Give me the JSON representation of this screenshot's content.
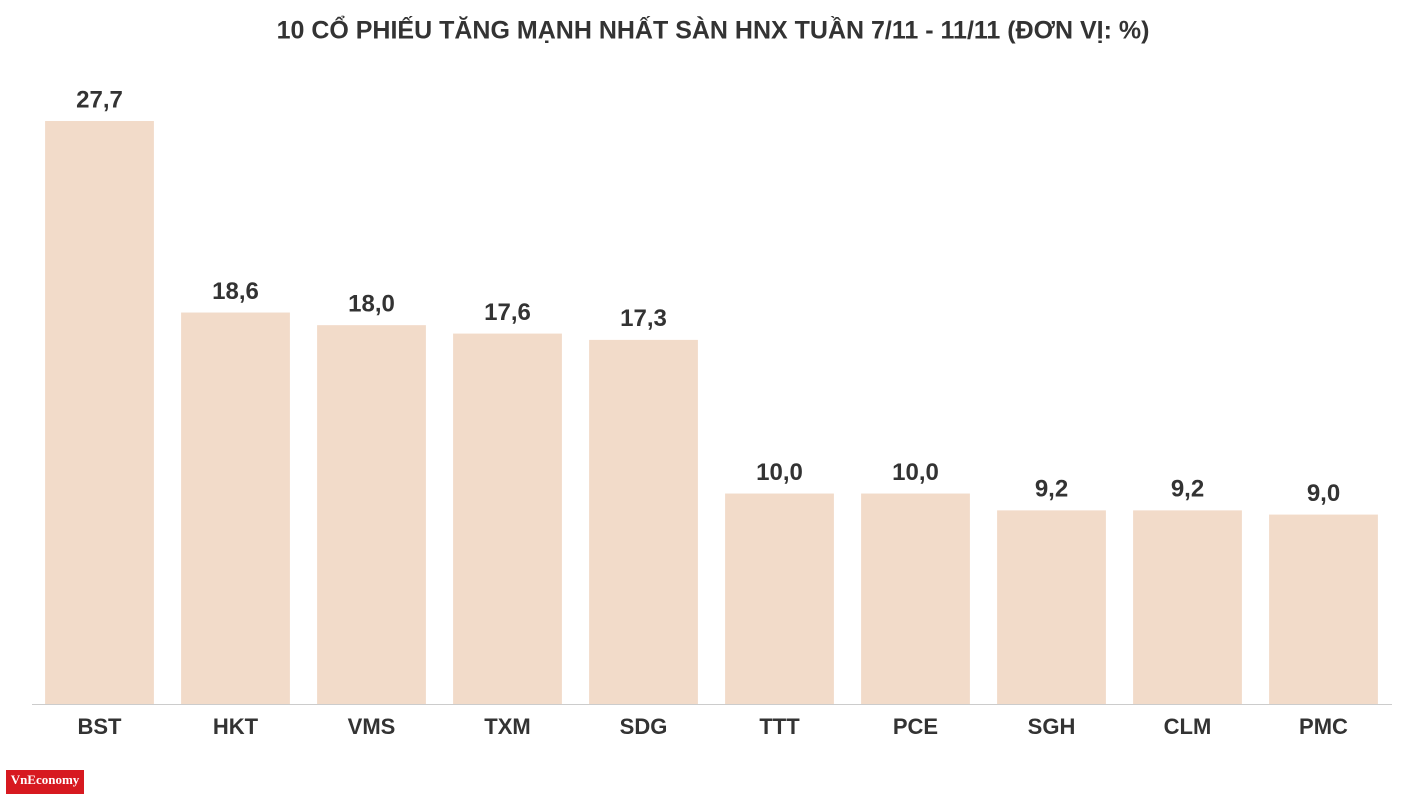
{
  "chart_data": {
    "type": "bar",
    "title": "10 CỔ PHIẾU TĂNG MẠNH NHẤT SÀN HNX TUẦN 7/11 - 11/11 (ĐƠN VỊ: %)",
    "categories": [
      "BST",
      "HKT",
      "VMS",
      "TXM",
      "SDG",
      "TTT",
      "PCE",
      "SGH",
      "CLM",
      "PMC"
    ],
    "values": [
      27.7,
      18.6,
      18.0,
      17.6,
      17.3,
      10.0,
      10.0,
      9.2,
      9.2,
      9.0
    ],
    "value_labels": [
      "27,7",
      "18,6",
      "18,0",
      "17,6",
      "17,3",
      "10,0",
      "10,0",
      "9,2",
      "9,2",
      "9,0"
    ],
    "color": "#f2dbc9",
    "ylim": [
      0,
      30
    ],
    "logo": "VnEconomy"
  }
}
